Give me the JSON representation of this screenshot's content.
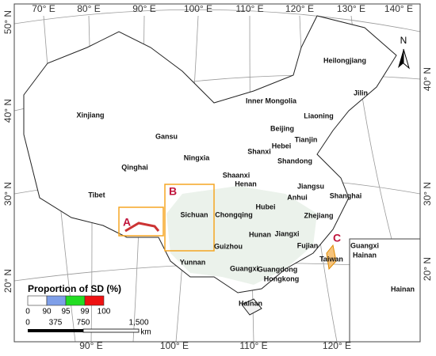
{
  "graticule": {
    "top": [
      "70° E",
      "80° E",
      "90° E",
      "100° E",
      "110° E",
      "120° E",
      "130° E",
      "140° E"
    ],
    "bottom": [
      "90° E",
      "100° E",
      "110° E",
      "120° E"
    ],
    "left": [
      "50° N",
      "40° N",
      "30° N",
      "20° N"
    ],
    "right": [
      "40° N",
      "30° N",
      "20° N"
    ]
  },
  "provinces": [
    "Heilongjiang",
    "Jilin",
    "Liaoning",
    "Inner Mongolia",
    "Beijing",
    "Tianjin",
    "Hebei",
    "Xinjiang",
    "Gansu",
    "Ningxia",
    "Shanxi",
    "Shandong",
    "Qinghai",
    "Shaanxi",
    "Henan",
    "Jiangsu",
    "Anhui",
    "Shanghai",
    "Tibet",
    "Sichuan",
    "Chongqing",
    "Hubei",
    "Zhejiang",
    "Jiangxi",
    "Hunan",
    "Fujian",
    "Guizhou",
    "Yunnan",
    "Taiwan",
    "Guangxi",
    "Guangdong",
    "Hongkong",
    "Hainan"
  ],
  "inset_labels": [
    "Guangxi",
    "Hainan",
    "Hainan"
  ],
  "region_markers": [
    "A",
    "B",
    "C"
  ],
  "north": "N",
  "legend": {
    "title": "Proportion of SD (%)",
    "breaks": [
      0,
      90,
      95,
      99,
      100
    ],
    "colors": [
      "#ffffff",
      "#7f9fe8",
      "#22dd22",
      "#ee1111"
    ]
  },
  "scale_bar": {
    "ticks": [
      "0",
      "375",
      "750",
      "1,500"
    ],
    "unit": "km"
  }
}
